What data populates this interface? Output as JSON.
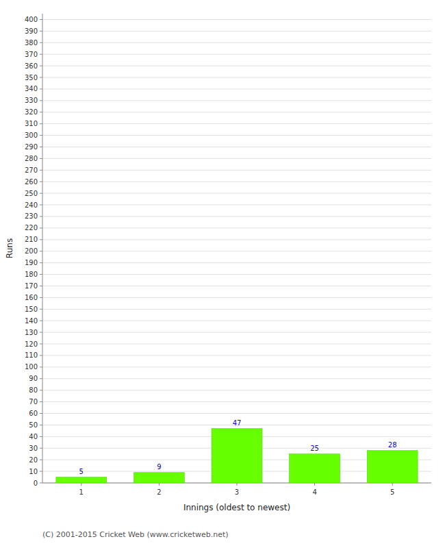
{
  "chart_data": {
    "type": "bar",
    "xlabel": "Innings (oldest to newest)",
    "ylabel": "Runs",
    "x": [
      1,
      2,
      3,
      4,
      5
    ],
    "values": [
      5,
      9,
      47,
      25,
      28
    ],
    "color": "#66ff00",
    "xlim": [
      0.5,
      5.5
    ],
    "xticks": [
      1,
      2,
      3,
      4,
      5
    ],
    "ylim": [
      0,
      405
    ],
    "yticks": [
      0,
      10,
      20,
      30,
      40,
      50,
      60,
      70,
      80,
      90,
      100,
      110,
      120,
      130,
      140,
      150,
      160,
      170,
      180,
      190,
      200,
      210,
      220,
      230,
      240,
      250,
      260,
      270,
      280,
      290,
      300,
      310,
      320,
      330,
      340,
      350,
      360,
      370,
      380,
      390,
      400
    ],
    "grid": true,
    "data_labels": true,
    "annotations": [
      "(C) 2001-2015 Cricket Web (www.cricketweb.net)"
    ]
  }
}
